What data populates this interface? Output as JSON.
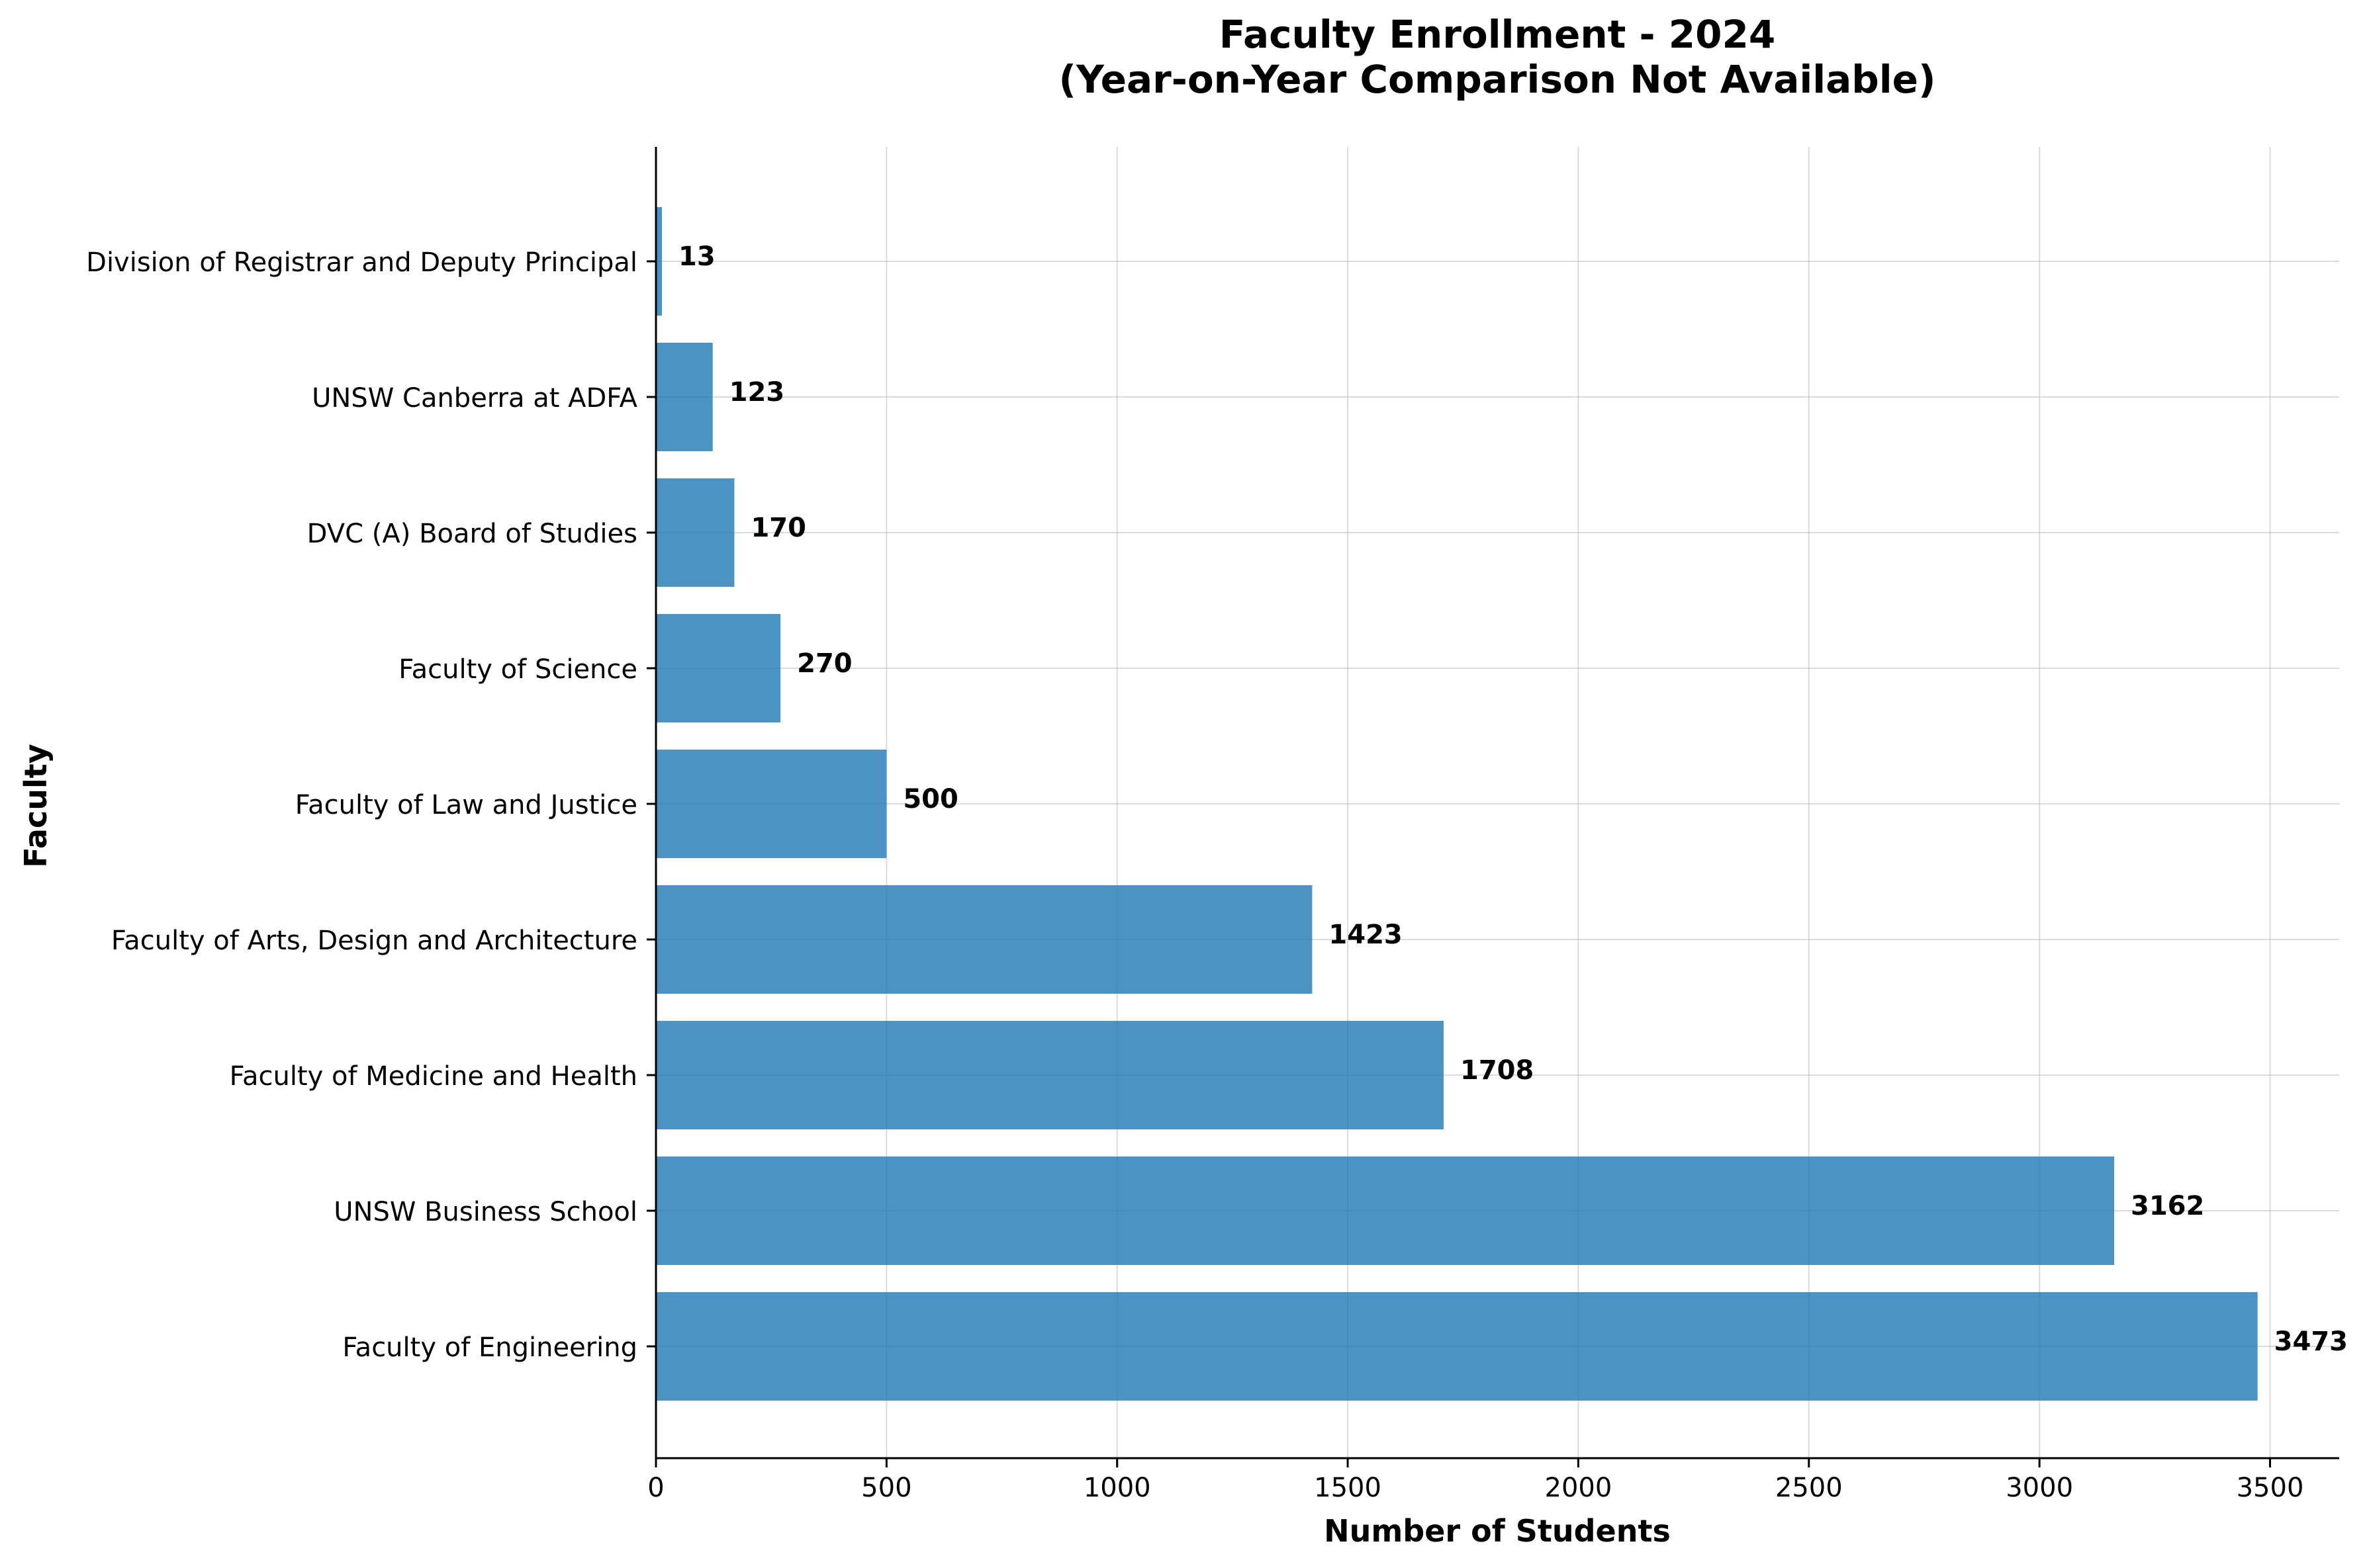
{
  "chart_data": {
    "type": "bar",
    "orientation": "horizontal",
    "title": "Faculty Enrollment - 2024",
    "subtitle": "(Year-on-Year Comparison Not Available)",
    "xlabel": "Number of Students",
    "ylabel": "Faculty",
    "xlim": [
      0,
      3650
    ],
    "xticks": [
      0,
      500,
      1000,
      1500,
      2000,
      2500,
      3000,
      3500
    ],
    "grid": true,
    "color": "#1f77b4",
    "categories": [
      "Division of Registrar and Deputy Principal",
      "UNSW Canberra at ADFA",
      "DVC (A) Board of Studies",
      "Faculty of Science",
      "Faculty of Law and Justice",
      "Faculty of Arts, Design and Architecture",
      "Faculty of Medicine and Health",
      "UNSW Business School",
      "Faculty of Engineering"
    ],
    "values": [
      13,
      123,
      170,
      270,
      500,
      1423,
      1708,
      3162,
      3473
    ]
  }
}
